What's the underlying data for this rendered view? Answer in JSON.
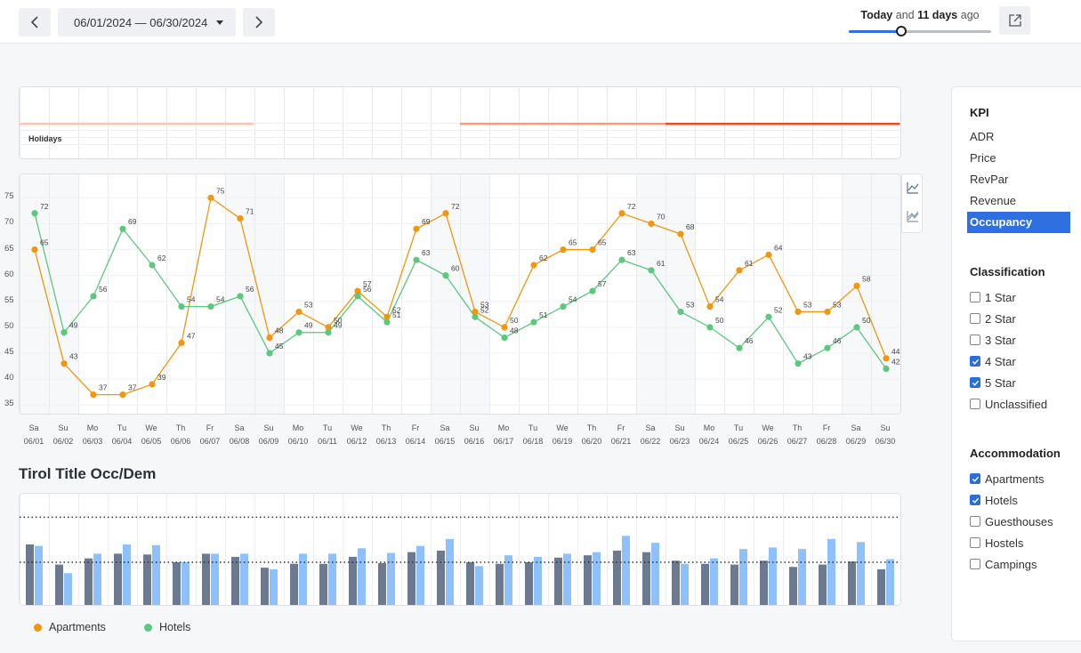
{
  "topbar": {
    "date_range": "06/01/2024 — 06/30/2024",
    "time_prefix": "Today",
    "time_mid": " and ",
    "time_days": "11 days",
    "time_suffix": " ago",
    "slider_fraction": 0.37,
    "accent": "#2f6fe0"
  },
  "holidays": {
    "label": "Holidays",
    "bands": [
      {
        "start_day": 1,
        "end_day": 8,
        "color": "#f5c7b4"
      },
      {
        "start_day": 16,
        "end_day": 23,
        "color": "#ef9f80"
      },
      {
        "start_day": 23,
        "end_day": 30,
        "color": "#e2511f"
      }
    ]
  },
  "chart_data": [
    {
      "type": "line",
      "yticks": [
        35,
        40,
        45,
        50,
        55,
        60,
        65,
        70,
        75
      ],
      "ylim": [
        33.5,
        79
      ],
      "categories": [
        {
          "day": "Sa",
          "date": "06/01",
          "weekend": true
        },
        {
          "day": "Su",
          "date": "06/02",
          "weekend": true
        },
        {
          "day": "Mo",
          "date": "06/03",
          "weekend": false
        },
        {
          "day": "Tu",
          "date": "06/04",
          "weekend": false
        },
        {
          "day": "We",
          "date": "06/05",
          "weekend": false
        },
        {
          "day": "Th",
          "date": "06/06",
          "weekend": false
        },
        {
          "day": "Fr",
          "date": "06/07",
          "weekend": false
        },
        {
          "day": "Sa",
          "date": "06/08",
          "weekend": true
        },
        {
          "day": "Su",
          "date": "06/09",
          "weekend": true
        },
        {
          "day": "Mo",
          "date": "06/10",
          "weekend": false
        },
        {
          "day": "Tu",
          "date": "06/11",
          "weekend": false
        },
        {
          "day": "We",
          "date": "06/12",
          "weekend": false
        },
        {
          "day": "Th",
          "date": "06/13",
          "weekend": false
        },
        {
          "day": "Fr",
          "date": "06/14",
          "weekend": false
        },
        {
          "day": "Sa",
          "date": "06/15",
          "weekend": true
        },
        {
          "day": "Su",
          "date": "06/16",
          "weekend": true
        },
        {
          "day": "Mo",
          "date": "06/17",
          "weekend": false
        },
        {
          "day": "Tu",
          "date": "06/18",
          "weekend": false
        },
        {
          "day": "We",
          "date": "06/19",
          "weekend": false
        },
        {
          "day": "Th",
          "date": "06/20",
          "weekend": false
        },
        {
          "day": "Fr",
          "date": "06/21",
          "weekend": false
        },
        {
          "day": "Sa",
          "date": "06/22",
          "weekend": true
        },
        {
          "day": "Su",
          "date": "06/23",
          "weekend": true
        },
        {
          "day": "Mo",
          "date": "06/24",
          "weekend": false
        },
        {
          "day": "Tu",
          "date": "06/25",
          "weekend": false
        },
        {
          "day": "We",
          "date": "06/26",
          "weekend": false
        },
        {
          "day": "Th",
          "date": "06/27",
          "weekend": false
        },
        {
          "day": "Fr",
          "date": "06/28",
          "weekend": false
        },
        {
          "day": "Sa",
          "date": "06/29",
          "weekend": true
        },
        {
          "day": "Su",
          "date": "06/30",
          "weekend": true
        }
      ],
      "series": [
        {
          "name": "Apartments",
          "color": "#f0960f",
          "values": [
            65,
            43,
            37,
            37,
            39,
            47,
            75,
            71,
            48,
            53,
            50,
            57,
            52,
            69,
            72,
            53,
            50,
            62,
            65,
            65,
            72,
            70,
            68,
            54,
            61,
            64,
            53,
            53,
            58,
            44
          ]
        },
        {
          "name": "Hotels",
          "color": "#5cc87e",
          "values": [
            72,
            49,
            56,
            69,
            62,
            54,
            54,
            56,
            45,
            49,
            49,
            56,
            51,
            63,
            60,
            52,
            48,
            51,
            54,
            57,
            63,
            61,
            53,
            50,
            46,
            52,
            43,
            46,
            50,
            42
          ]
        }
      ],
      "grid": true
    },
    {
      "type": "bar",
      "title": "Tirol Title Occ/Dem",
      "series": [
        {
          "name": "dark",
          "color": "#6b7a90",
          "values": [
            0.78,
            0.52,
            0.6,
            0.66,
            0.65,
            0.55,
            0.66,
            0.62,
            0.48,
            0.53,
            0.53,
            0.62,
            0.54,
            0.68,
            0.7,
            0.55,
            0.53,
            0.55,
            0.61,
            0.64,
            0.7,
            0.68,
            0.57,
            0.53,
            0.52,
            0.57,
            0.49,
            0.52,
            0.56,
            0.46
          ]
        },
        {
          "name": "light",
          "color": "#8ec0fb",
          "values": [
            0.76,
            0.41,
            0.66,
            0.78,
            0.77,
            0.55,
            0.66,
            0.66,
            0.46,
            0.66,
            0.66,
            0.73,
            0.67,
            0.76,
            0.85,
            0.5,
            0.64,
            0.62,
            0.66,
            0.68,
            0.89,
            0.8,
            0.53,
            0.6,
            0.72,
            0.74,
            0.72,
            0.85,
            0.81,
            0.59
          ]
        }
      ],
      "ref_lines": [
        0.55,
        1.13
      ],
      "ylim": [
        0,
        1.2
      ]
    }
  ],
  "legend": [
    {
      "label": "Apartments",
      "color": "#f0960f"
    },
    {
      "label": "Hotels",
      "color": "#5cc87e"
    }
  ],
  "sidebar": {
    "kpi_title": "KPI",
    "kpis": [
      {
        "label": "ADR",
        "active": false
      },
      {
        "label": "Price",
        "active": false
      },
      {
        "label": "RevPar",
        "active": false
      },
      {
        "label": "Revenue",
        "active": false
      },
      {
        "label": "Occupancy",
        "active": true
      }
    ],
    "classification_title": "Classification",
    "classifications": [
      {
        "label": "1 Star",
        "checked": false
      },
      {
        "label": "2 Star",
        "checked": false
      },
      {
        "label": "3 Star",
        "checked": false
      },
      {
        "label": "4 Star",
        "checked": true
      },
      {
        "label": "5 Star",
        "checked": true
      },
      {
        "label": "Unclassified",
        "checked": false
      }
    ],
    "accommodation_title": "Accommodation",
    "accommodations": [
      {
        "label": "Apartments",
        "checked": true
      },
      {
        "label": "Hotels",
        "checked": true
      },
      {
        "label": "Guesthouses",
        "checked": false
      },
      {
        "label": "Hostels",
        "checked": false
      },
      {
        "label": "Campings",
        "checked": false
      }
    ]
  }
}
